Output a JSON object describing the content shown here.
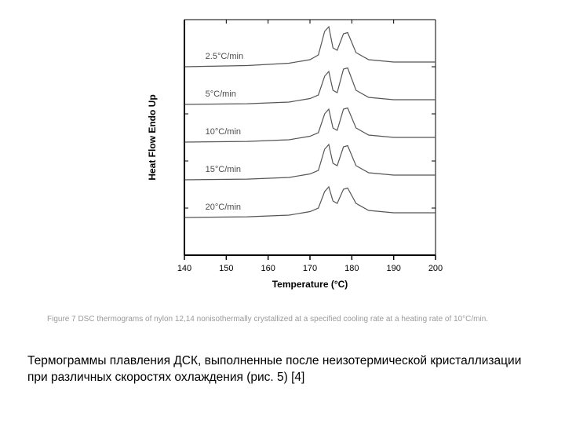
{
  "chart": {
    "type": "line",
    "xlabel": "Temperature (°C)",
    "ylabel": "Heat Flow Endo Up",
    "label_fontsize": 12,
    "label_weight": "bold",
    "background_color": "#ffffff",
    "axis_color": "#000000",
    "series_color": "#555555",
    "xlim": [
      140,
      200
    ],
    "xtick_step": 10,
    "xticks": [
      140,
      150,
      160,
      170,
      180,
      190,
      200
    ],
    "ylim": [
      0,
      100
    ],
    "line_width": 1.2,
    "series_labels": [
      "2.5°C/min",
      "5°C/min",
      "10°C/min",
      "15°C/min",
      "20°C/min"
    ],
    "series_label_fontsize": 11,
    "series_label_color": "#4b4b4b",
    "curves": [
      {
        "baseline": 82,
        "label": "2.5°C/min",
        "points": [
          {
            "x": 140,
            "y": 80
          },
          {
            "x": 155,
            "y": 80.5
          },
          {
            "x": 165,
            "y": 81.5
          },
          {
            "x": 170,
            "y": 83
          },
          {
            "x": 172,
            "y": 85
          },
          {
            "x": 173.5,
            "y": 95
          },
          {
            "x": 174.5,
            "y": 97
          },
          {
            "x": 175.5,
            "y": 88
          },
          {
            "x": 176.5,
            "y": 87
          },
          {
            "x": 178,
            "y": 94
          },
          {
            "x": 179,
            "y": 94.5
          },
          {
            "x": 181,
            "y": 86
          },
          {
            "x": 184,
            "y": 83
          },
          {
            "x": 190,
            "y": 82
          },
          {
            "x": 200,
            "y": 82
          }
        ]
      },
      {
        "baseline": 66,
        "label": "5°C/min",
        "points": [
          {
            "x": 140,
            "y": 64
          },
          {
            "x": 155,
            "y": 64.3
          },
          {
            "x": 165,
            "y": 65
          },
          {
            "x": 170,
            "y": 66.5
          },
          {
            "x": 172,
            "y": 68
          },
          {
            "x": 173.5,
            "y": 76
          },
          {
            "x": 174.5,
            "y": 78
          },
          {
            "x": 175.5,
            "y": 70
          },
          {
            "x": 176.5,
            "y": 69
          },
          {
            "x": 178,
            "y": 79
          },
          {
            "x": 179,
            "y": 79.5
          },
          {
            "x": 181,
            "y": 70
          },
          {
            "x": 184,
            "y": 67
          },
          {
            "x": 190,
            "y": 66
          },
          {
            "x": 200,
            "y": 66
          }
        ]
      },
      {
        "baseline": 50,
        "label": "10°C/min",
        "points": [
          {
            "x": 140,
            "y": 48
          },
          {
            "x": 155,
            "y": 48.3
          },
          {
            "x": 165,
            "y": 49
          },
          {
            "x": 170,
            "y": 50.5
          },
          {
            "x": 172,
            "y": 52
          },
          {
            "x": 173.5,
            "y": 60
          },
          {
            "x": 174.5,
            "y": 62
          },
          {
            "x": 175.5,
            "y": 54
          },
          {
            "x": 176.5,
            "y": 53
          },
          {
            "x": 178,
            "y": 62
          },
          {
            "x": 179,
            "y": 62.5
          },
          {
            "x": 181,
            "y": 54
          },
          {
            "x": 184,
            "y": 51
          },
          {
            "x": 190,
            "y": 50
          },
          {
            "x": 200,
            "y": 50
          }
        ]
      },
      {
        "baseline": 34,
        "label": "15°C/min",
        "points": [
          {
            "x": 140,
            "y": 32
          },
          {
            "x": 155,
            "y": 32.3
          },
          {
            "x": 165,
            "y": 33
          },
          {
            "x": 170,
            "y": 34.5
          },
          {
            "x": 172,
            "y": 36
          },
          {
            "x": 173.5,
            "y": 45
          },
          {
            "x": 174.5,
            "y": 47
          },
          {
            "x": 175.5,
            "y": 39
          },
          {
            "x": 176.5,
            "y": 38
          },
          {
            "x": 178,
            "y": 46
          },
          {
            "x": 179,
            "y": 46.5
          },
          {
            "x": 181,
            "y": 38
          },
          {
            "x": 184,
            "y": 35
          },
          {
            "x": 190,
            "y": 34
          },
          {
            "x": 200,
            "y": 34
          }
        ]
      },
      {
        "baseline": 18,
        "label": "20°C/min",
        "points": [
          {
            "x": 140,
            "y": 16
          },
          {
            "x": 155,
            "y": 16.3
          },
          {
            "x": 165,
            "y": 17
          },
          {
            "x": 170,
            "y": 18.5
          },
          {
            "x": 172,
            "y": 20
          },
          {
            "x": 173.5,
            "y": 27
          },
          {
            "x": 174.5,
            "y": 29
          },
          {
            "x": 175.5,
            "y": 23
          },
          {
            "x": 176.5,
            "y": 22
          },
          {
            "x": 178,
            "y": 28
          },
          {
            "x": 179,
            "y": 28.5
          },
          {
            "x": 181,
            "y": 22
          },
          {
            "x": 184,
            "y": 19
          },
          {
            "x": 190,
            "y": 18
          },
          {
            "x": 200,
            "y": 18
          }
        ]
      }
    ]
  },
  "caption": "Figure 7   DSC thermograms of nylon 12,14 nonisothermally crystallized at a specified cooling rate at a heating rate of 10°C/min.",
  "bodytext": "Термограммы плавления ДСК,  выполненные  после неизотермической кристаллизации при различных скоростях охлаждения (рис. 5) [4]"
}
